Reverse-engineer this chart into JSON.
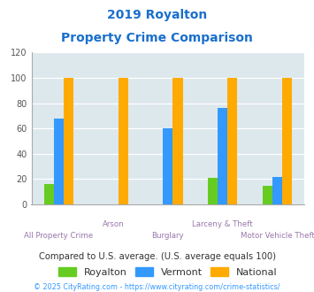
{
  "title_line1": "2019 Royalton",
  "title_line2": "Property Crime Comparison",
  "categories": [
    "All Property Crime",
    "Arson",
    "Burglary",
    "Larceny & Theft",
    "Motor Vehicle Theft"
  ],
  "royalton": [
    16,
    0,
    0,
    21,
    15
  ],
  "vermont": [
    68,
    0,
    60,
    76,
    22
  ],
  "national": [
    100,
    100,
    100,
    100,
    100
  ],
  "color_royalton": "#66cc22",
  "color_vermont": "#3399ff",
  "color_national": "#ffaa00",
  "color_title": "#1a6fcc",
  "color_xlabel": "#9977aa",
  "color_compare_text": "#333333",
  "color_footer": "#3399ff",
  "bg_plot": "#dce8ec",
  "ylim": [
    0,
    120
  ],
  "yticks": [
    0,
    20,
    40,
    60,
    80,
    100,
    120
  ],
  "bar_width": 0.18,
  "legend_labels": [
    "Royalton",
    "Vermont",
    "National"
  ],
  "compare_text": "Compared to U.S. average. (U.S. average equals 100)",
  "footer_text": "© 2025 CityRating.com - https://www.cityrating.com/crime-statistics/"
}
